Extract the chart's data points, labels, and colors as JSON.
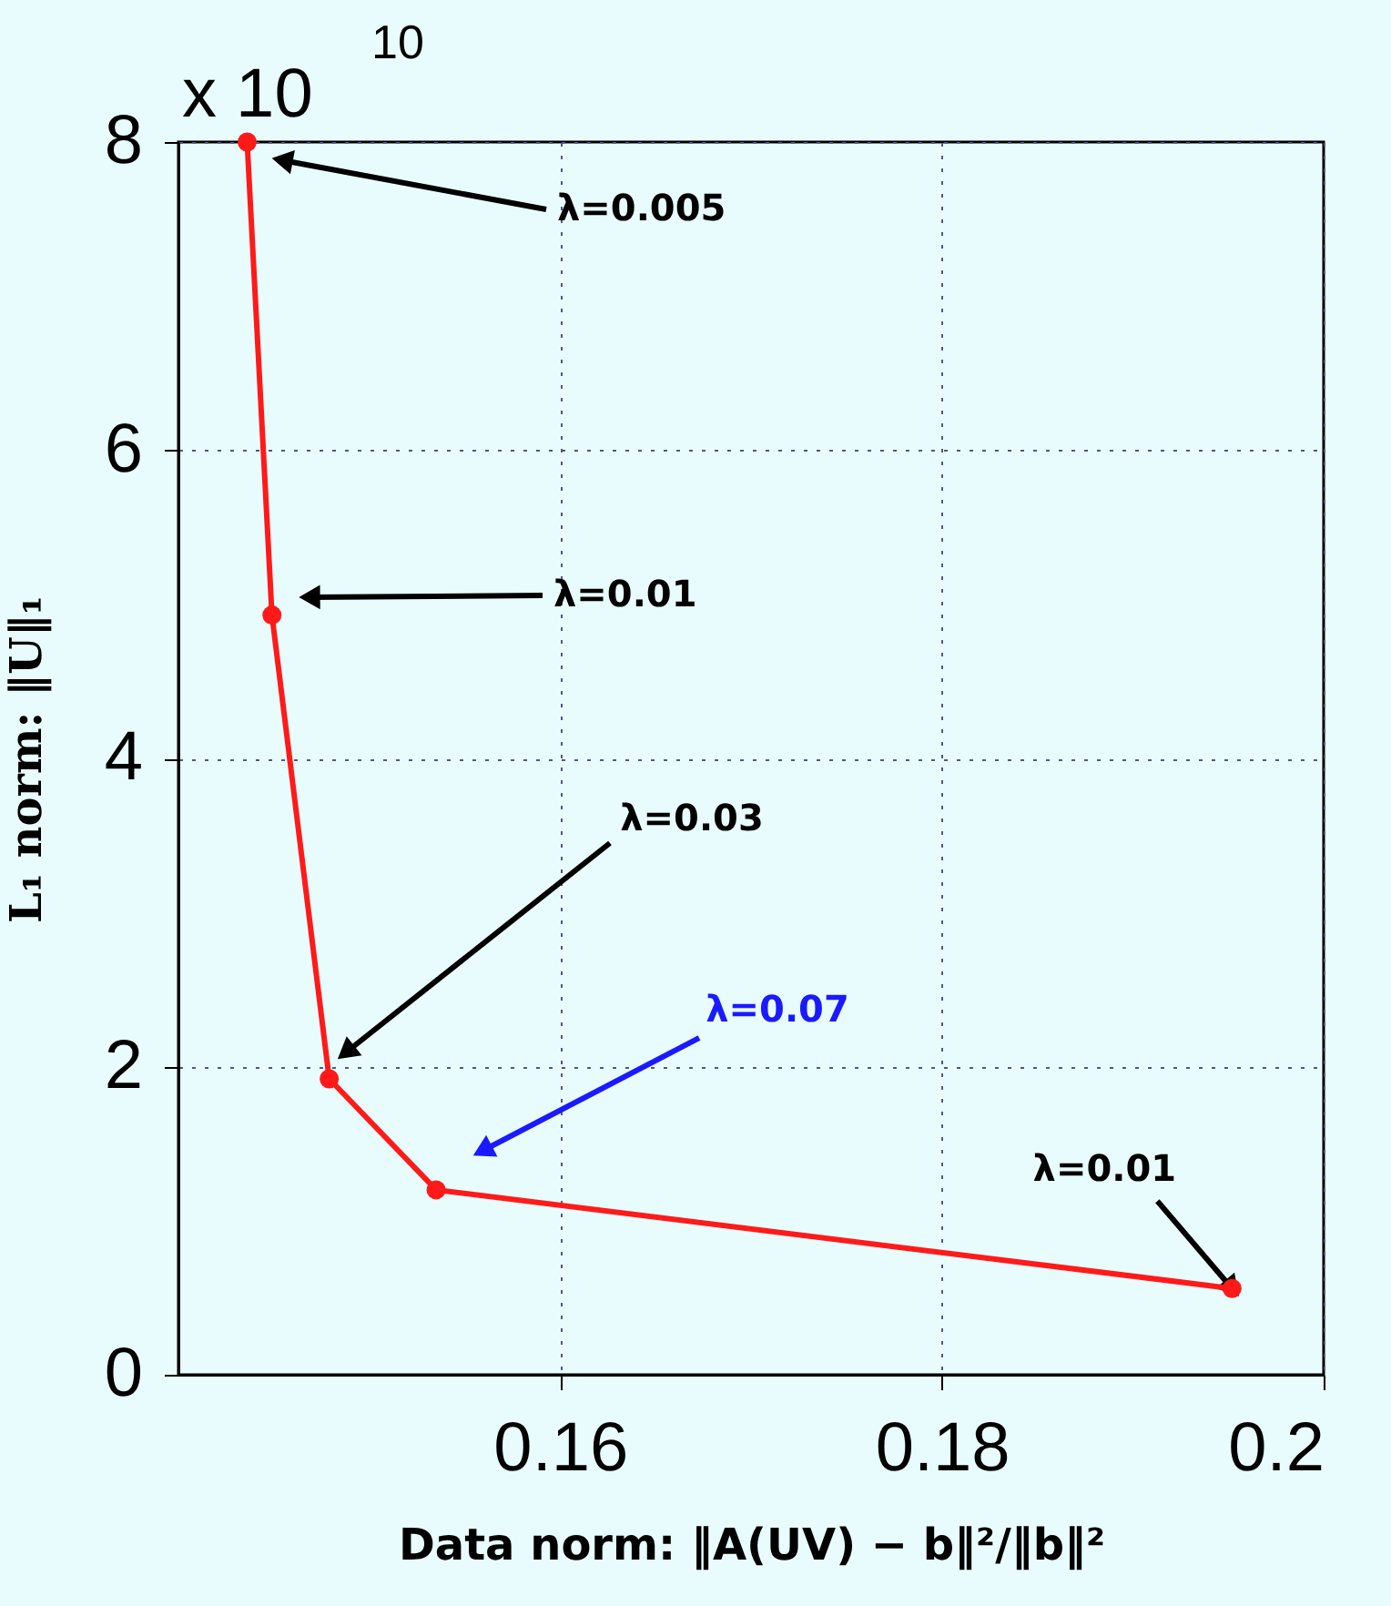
{
  "chart_data": {
    "type": "line",
    "xlabel": "Data norm: ‖A(UV) − b‖²/‖b‖²",
    "ylabel": "L₁ norm: ‖U‖₁",
    "x": [
      0.1436,
      0.1449,
      0.1479,
      0.1535,
      0.1952
    ],
    "series": [
      {
        "color": "#ff1a1a",
        "values": [
          8.0,
          4.93,
          1.92,
          1.2,
          0.56
        ]
      }
    ],
    "xlim": [
      0.14,
      0.2
    ],
    "ylim": [
      0,
      8
    ],
    "xticks": [
      0.16,
      0.18,
      0.2
    ],
    "yticks": [
      0,
      2,
      4,
      6,
      8
    ],
    "grid": true,
    "marker": "circle",
    "line_style": "solid",
    "annotations": [
      "x 10$^{10}$",
      "λ=0.005",
      "λ=0.01",
      "λ=0.03",
      "λ=0.07",
      {
        "text": "λ=0.01",
        "x": 0.1952,
        "y": 0.56
      }
    ]
  }
}
